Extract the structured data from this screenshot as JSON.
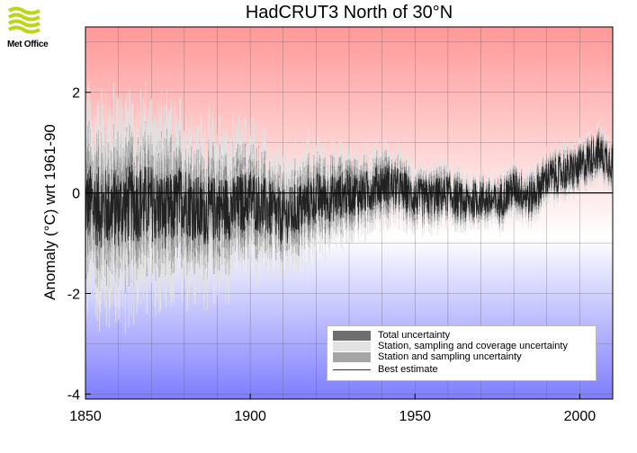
{
  "logo": {
    "text": "Met Office",
    "icon": "met-office-wave-logo"
  },
  "chart_data": {
    "type": "line",
    "title": "HadCRUT3 North of 30°N",
    "xlabel": "",
    "ylabel": "Anomaly (°C) wrt 1961-90",
    "xlim": [
      1850,
      2010
    ],
    "ylim": [
      -4.1,
      3.3
    ],
    "x_ticks": [
      1850,
      1900,
      1950,
      2000
    ],
    "y_ticks": [
      -4,
      -2,
      0,
      2
    ],
    "grid": true,
    "background_gradient": {
      "top": "#ff9898",
      "middle": "#ffffff",
      "bottom": "#7d7dff"
    },
    "legend_position": "bottom-right",
    "legend": [
      {
        "label": "Total uncertainty",
        "color": "#6e6e6e",
        "kind": "band"
      },
      {
        "label": "Station, sampling and coverage uncertainty",
        "color": "#e2e2e2",
        "kind": "band"
      },
      {
        "label": "Station and sampling uncertainty",
        "color": "#a5a5a5",
        "kind": "band"
      },
      {
        "label": "Best estimate",
        "color": "#333333",
        "kind": "line"
      }
    ],
    "series": [
      {
        "name": "Best estimate",
        "x": [
          1850,
          1855,
          1860,
          1865,
          1870,
          1875,
          1880,
          1885,
          1890,
          1895,
          1900,
          1905,
          1910,
          1915,
          1920,
          1925,
          1930,
          1935,
          1940,
          1945,
          1950,
          1955,
          1960,
          1965,
          1970,
          1975,
          1980,
          1985,
          1990,
          1995,
          2000,
          2005,
          2010
        ],
        "values": [
          -0.2,
          -0.3,
          -0.3,
          -0.2,
          -0.2,
          -0.4,
          -0.1,
          -0.4,
          -0.3,
          -0.3,
          -0.1,
          -0.3,
          -0.5,
          -0.3,
          -0.1,
          -0.1,
          0.0,
          0.0,
          0.2,
          0.1,
          -0.1,
          -0.1,
          0.0,
          -0.2,
          -0.1,
          -0.2,
          0.1,
          -0.1,
          0.3,
          0.4,
          0.5,
          0.8,
          0.6
        ]
      },
      {
        "name": "Total uncertainty",
        "x": [
          1850,
          1870,
          1890,
          1910,
          1930,
          1950,
          1970,
          1990,
          2010
        ],
        "half_width": [
          1.6,
          1.5,
          1.2,
          0.9,
          0.6,
          0.4,
          0.3,
          0.3,
          0.3
        ]
      }
    ]
  }
}
